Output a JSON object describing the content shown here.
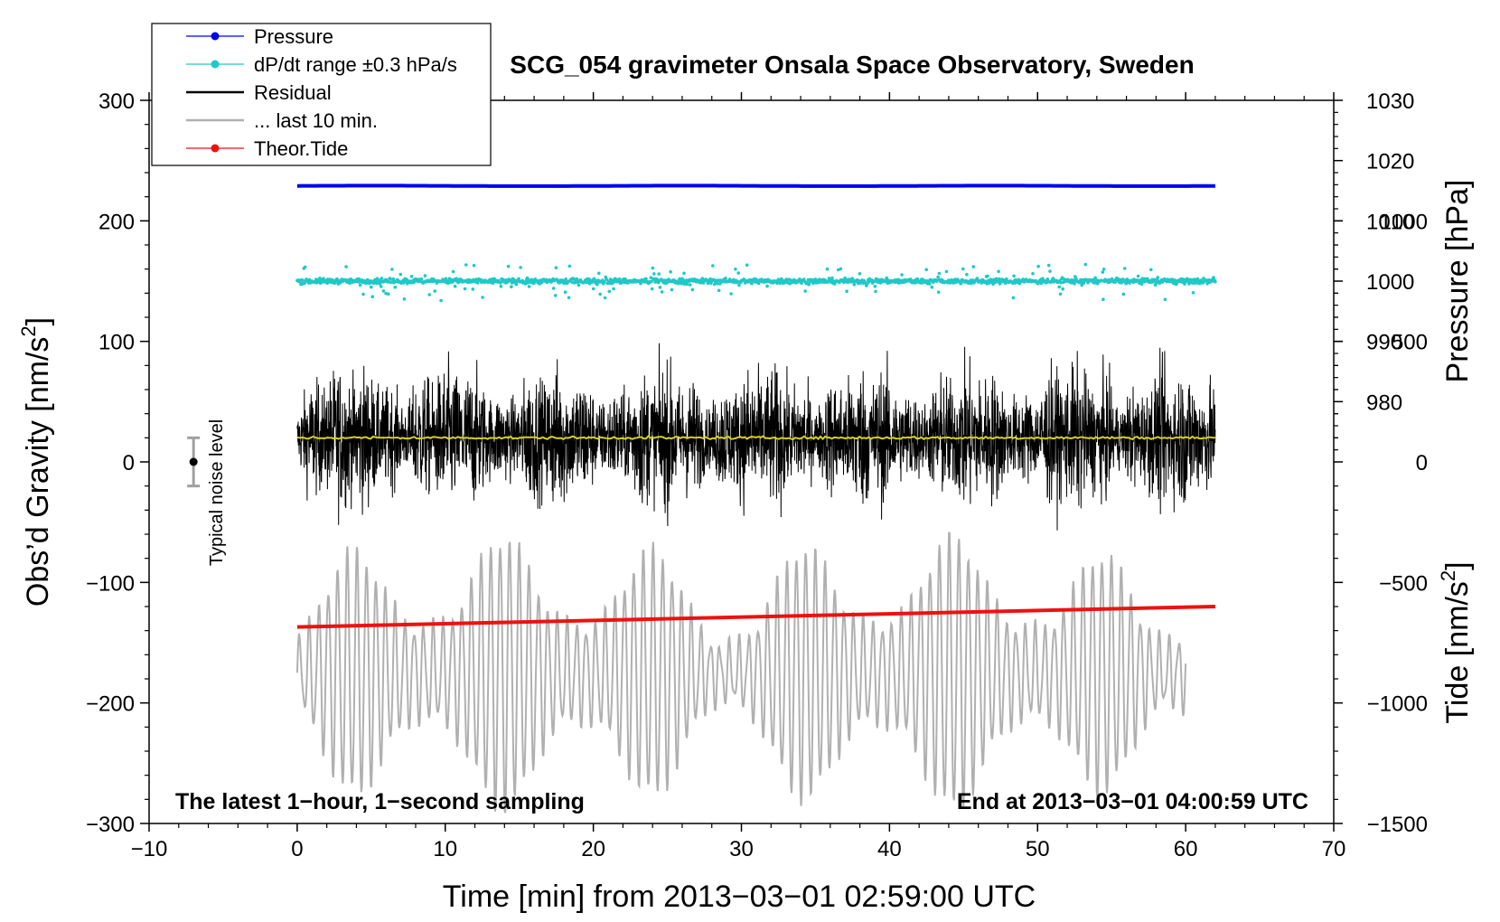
{
  "chart_data": {
    "type": "line",
    "title": "SCG_054 gravimeter Onsala Space Observatory, Sweden",
    "xlabel": "Time [min] from 2013−03−01 02:59:00 UTC",
    "ylabel_left": "Obs’d Gravity [nm/s",
    "ylabel_left_sup": "2",
    "ylabel_left_close": "]",
    "ylabel_right_top": "Pressure [hPa]",
    "ylabel_right_bottom": "Tide [nm/s",
    "ylabel_right_bottom_sup": "2",
    "ylabel_right_bottom_close": "]",
    "xlim": [
      -10,
      70
    ],
    "ylim": [
      -300,
      300
    ],
    "x_ticks": [
      -10,
      0,
      10,
      20,
      30,
      40,
      50,
      60,
      70
    ],
    "x_tick_labels": [
      "−10",
      "0",
      "10",
      "20",
      "30",
      "40",
      "50",
      "60",
      "70"
    ],
    "y_ticks": [
      -300,
      -200,
      -100,
      0,
      100,
      200,
      300
    ],
    "y_tick_labels": [
      "−300",
      "−200",
      "−100",
      "0",
      "100",
      "200",
      "300"
    ],
    "pressure_axis": {
      "ticks": [
        980,
        990,
        1000,
        1010,
        1020,
        1030
      ],
      "tick_labels": [
        "980",
        "990",
        "1000",
        "1010",
        "1020",
        "1030"
      ],
      "range": [
        970,
        1030
      ]
    },
    "tide_axis": {
      "ticks": [
        -1500,
        -1000,
        -500,
        0,
        500,
        1000
      ],
      "tick_labels": [
        "−1500",
        "−1000",
        "−500",
        "0",
        "500",
        "1000"
      ],
      "range": [
        -1500,
        1500
      ]
    },
    "legend": [
      {
        "label": "Pressure",
        "color": "#0000ee",
        "style": "line-dot"
      },
      {
        "label": "dP/dt range ±0.3 hPa/s",
        "color": "#20c8c8",
        "style": "line-dot"
      },
      {
        "label": "Residual",
        "color": "#000000",
        "style": "line"
      },
      {
        "label": "... last 10 min.",
        "color": "#b0b0b0",
        "style": "line"
      },
      {
        "label": "Theor.Tide",
        "color": "#ee1111",
        "style": "line-dot"
      }
    ],
    "series": [
      {
        "name": "Pressure",
        "color": "#0000ee",
        "x_range": [
          0,
          62
        ],
        "approx_level": 229
      },
      {
        "name": "dP/dt range ±0.3 hPa/s",
        "color": "#20c8c8",
        "x_range": [
          0,
          62
        ],
        "approx_level": 150
      },
      {
        "name": "Residual",
        "color": "#000000",
        "x_range": [
          0,
          62
        ],
        "approx_level": 20
      },
      {
        "name": "Residual mean",
        "color": "#d8d020",
        "x_range": [
          0,
          62
        ],
        "approx_level": 20
      },
      {
        "name": "... last 10 min.",
        "color": "#b0b0b0",
        "x_range": [
          0,
          60
        ],
        "approx_level": -175
      },
      {
        "name": "Theor.Tide",
        "color": "#ee1111",
        "x": [
          0,
          62
        ],
        "y": [
          -137,
          -120
        ]
      }
    ],
    "noise_level": {
      "label": "Typical noise level",
      "x": -7,
      "center": 0,
      "range": [
        -20,
        20
      ]
    },
    "annotations": {
      "left": "The latest 1−hour, 1−second sampling",
      "right": "End at 2013−03−01 04:00:59 UTC"
    }
  }
}
